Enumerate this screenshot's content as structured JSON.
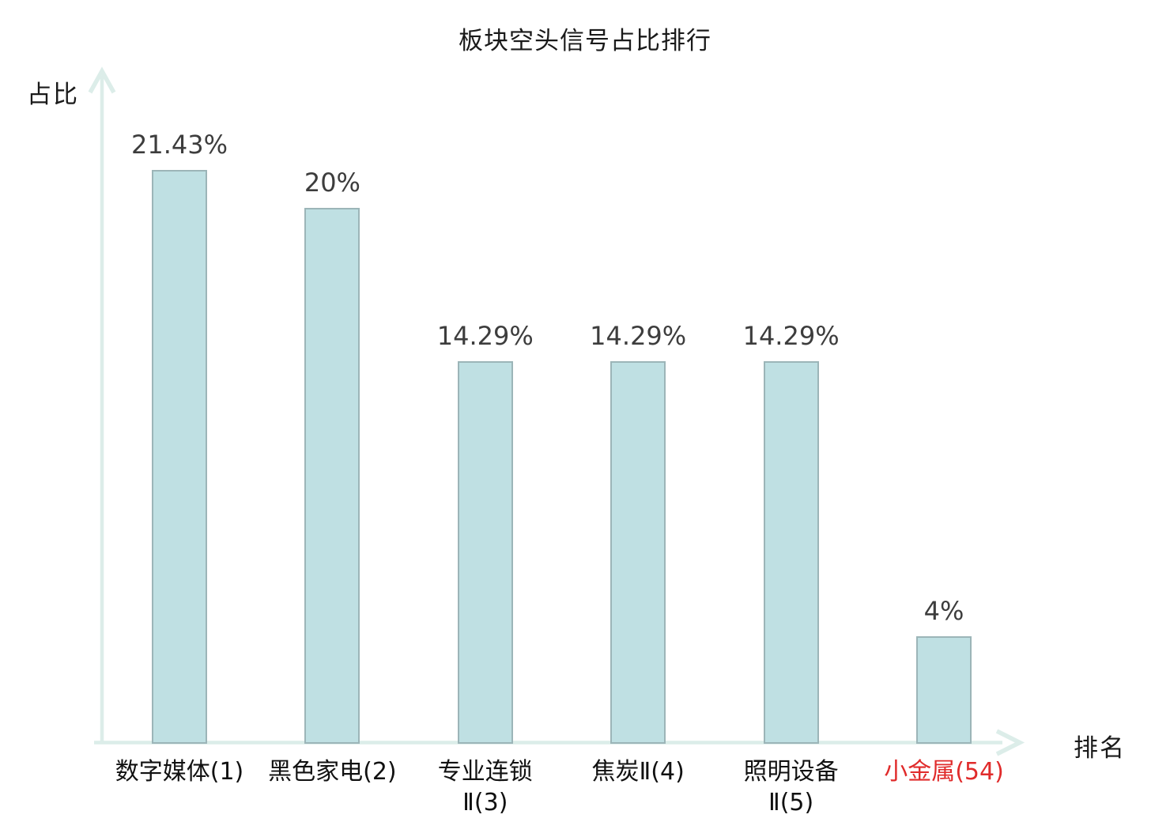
{
  "chart_data": {
    "type": "bar",
    "title": "板块空头信号占比排行",
    "xlabel": "排名",
    "ylabel": "占比",
    "categories": [
      "数字媒体(1)",
      "黑色家电(2)",
      "专业连锁Ⅱ(3)",
      "焦炭Ⅱ(4)",
      "照明设备Ⅱ(5)",
      "小金属(54)"
    ],
    "category_lines": [
      [
        "数字媒体(1)"
      ],
      [
        "黑色家电(2)"
      ],
      [
        "专业连锁",
        "Ⅱ(3)"
      ],
      [
        "焦炭Ⅱ(4)"
      ],
      [
        "照明设备",
        "Ⅱ(5)"
      ],
      [
        "小金属(54)"
      ]
    ],
    "values": [
      21.43,
      20,
      14.29,
      14.29,
      14.29,
      4
    ],
    "value_labels": [
      "21.43%",
      "20%",
      "14.29%",
      "14.29%",
      "14.29%",
      "4%"
    ],
    "highlighted_category_index": 5,
    "ylim": [
      0,
      25
    ],
    "grid": false,
    "legend": "none",
    "colors": {
      "background": "#ffffff",
      "bar_fill": "#bfe0e3",
      "bar_border": "#9cb5b8",
      "axis": "#dcede9",
      "title": "#1a1a1a",
      "value_label": "#3d3d3d",
      "category_label": "#111111",
      "highlight": "#e02b2b"
    }
  }
}
